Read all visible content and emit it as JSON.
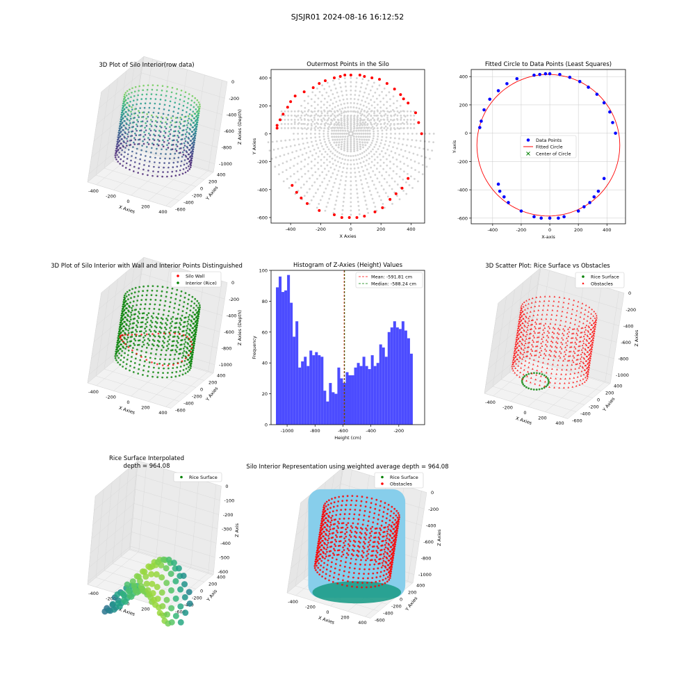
{
  "suptitle": "SJSJR01 2024-08-16 16:12:52",
  "colors": {
    "red": "#ff0000",
    "green": "#008000",
    "blue": "#0000ff",
    "hist_blue": "#4c4cff",
    "light_gray": "#d3d3d3",
    "sky_blue": "#87ceeb",
    "grid": "#c8c8c8"
  },
  "chart_data": [
    {
      "id": "p1",
      "type": "scatter3d",
      "title": "3D Plot of Silo Interior(row data)",
      "xlabel": "X Axies",
      "ylabel": "Y Axies",
      "zlabel": "Z Axies (Depth)",
      "xticks": [
        -400,
        -200,
        0,
        200,
        400
      ],
      "yticks": [
        -600,
        -400,
        -200,
        0,
        200,
        400
      ],
      "zticks": [
        0,
        -200,
        -400,
        -600,
        -800,
        -1000
      ],
      "xlim": [
        -500,
        460
      ],
      "ylim": [
        -600,
        420
      ],
      "zlim": [
        -1100,
        0
      ],
      "colormap": "viridis"
    },
    {
      "id": "p2",
      "type": "scatter",
      "title": "Outermost Points in the Silo",
      "xlabel": "X Axies",
      "ylabel": "Y Axies",
      "xticks": [
        -400,
        -200,
        0,
        200,
        400
      ],
      "yticks": [
        -600,
        -400,
        -200,
        0,
        200,
        400
      ],
      "xlim": [
        -530,
        490
      ],
      "ylim": [
        -640,
        460
      ],
      "outer_points": [
        [
          -490,
          60
        ],
        [
          -490,
          40
        ],
        [
          -470,
          100
        ],
        [
          -450,
          140
        ],
        [
          -420,
          190
        ],
        [
          -400,
          230
        ],
        [
          -370,
          270
        ],
        [
          -310,
          300
        ],
        [
          -250,
          330
        ],
        [
          -210,
          360
        ],
        [
          -170,
          380
        ],
        [
          -110,
          400
        ],
        [
          -70,
          410
        ],
        [
          -40,
          420
        ],
        [
          0,
          420
        ],
        [
          60,
          420
        ],
        [
          90,
          410
        ],
        [
          140,
          400
        ],
        [
          190,
          390
        ],
        [
          240,
          360
        ],
        [
          290,
          320
        ],
        [
          330,
          280
        ],
        [
          350,
          250
        ],
        [
          380,
          220
        ],
        [
          430,
          150
        ],
        [
          450,
          80
        ],
        [
          470,
          0
        ],
        [
          380,
          -320
        ],
        [
          340,
          -390
        ],
        [
          300,
          -430
        ],
        [
          260,
          -470
        ],
        [
          210,
          -530
        ],
        [
          160,
          -560
        ],
        [
          90,
          -590
        ],
        [
          40,
          -600
        ],
        [
          -10,
          -600
        ],
        [
          -60,
          -600
        ],
        [
          -110,
          -580
        ],
        [
          -210,
          -550
        ],
        [
          -290,
          -500
        ],
        [
          -330,
          -460
        ],
        [
          -360,
          -420
        ],
        [
          -390,
          -370
        ]
      ]
    },
    {
      "id": "p3",
      "type": "scatter",
      "title": "Fitted Circle to Data Points (Least Squares)",
      "xlabel": "X-axis",
      "ylabel": "Y-axis",
      "xticks": [
        -400,
        -200,
        0,
        200,
        400
      ],
      "yticks": [
        -600,
        -400,
        -200,
        0,
        200,
        400
      ],
      "xlim": [
        -550,
        530
      ],
      "ylim": [
        -640,
        450
      ],
      "legend": [
        "Data Points",
        "Fitted Circle",
        "Center of Circle"
      ],
      "circle": {
        "cx": -10,
        "cy": -85,
        "r": 500
      },
      "center": [
        -10,
        -85
      ],
      "data_points": [
        [
          -490,
          40
        ],
        [
          -480,
          85
        ],
        [
          -460,
          165
        ],
        [
          -420,
          240
        ],
        [
          -360,
          300
        ],
        [
          -300,
          350
        ],
        [
          -230,
          385
        ],
        [
          -110,
          410
        ],
        [
          -70,
          415
        ],
        [
          -30,
          420
        ],
        [
          0,
          420
        ],
        [
          70,
          415
        ],
        [
          140,
          395
        ],
        [
          210,
          365
        ],
        [
          270,
          325
        ],
        [
          330,
          275
        ],
        [
          380,
          215
        ],
        [
          420,
          150
        ],
        [
          440,
          75
        ],
        [
          460,
          0
        ],
        [
          380,
          -320
        ],
        [
          340,
          -410
        ],
        [
          310,
          -450
        ],
        [
          280,
          -490
        ],
        [
          240,
          -520
        ],
        [
          200,
          -550
        ],
        [
          100,
          -590
        ],
        [
          60,
          -600
        ],
        [
          0,
          -600
        ],
        [
          -60,
          -600
        ],
        [
          -110,
          -590
        ],
        [
          -200,
          -550
        ],
        [
          -290,
          -490
        ],
        [
          -320,
          -450
        ],
        [
          -350,
          -410
        ],
        [
          -360,
          -360
        ]
      ]
    },
    {
      "id": "p4",
      "type": "scatter3d",
      "title": "3D Plot of Silo Interior with Wall and Interior Points Distinguished",
      "xlabel": "X Axies",
      "ylabel": "Y Axies",
      "zlabel": "Z Axies (Depth)",
      "xticks": [
        -400,
        -200,
        0,
        200,
        400
      ],
      "yticks": [
        -600,
        -400,
        -200,
        0,
        200,
        400
      ],
      "zticks": [
        0,
        -200,
        -400,
        -600,
        -800,
        -1000
      ],
      "xlim": [
        -500,
        460
      ],
      "ylim": [
        -600,
        420
      ],
      "zlim": [
        -1100,
        0
      ],
      "legend": [
        "Silo Wall",
        "Interior (Rice)"
      ]
    },
    {
      "id": "p5",
      "type": "bar",
      "title": "Histogram of Z-Axies (Height) Values",
      "xlabel": "Height (cm)",
      "ylabel": "Frequency",
      "xticks": [
        -1000,
        -800,
        -600,
        -400,
        -200
      ],
      "yticks": [
        0,
        20,
        40,
        60,
        80,
        100
      ],
      "xlim": [
        -1115,
        -15
      ],
      "ylim": [
        0,
        100
      ],
      "bin_start": -1080,
      "bin_width": 20,
      "values": [
        89,
        96,
        86,
        87,
        97,
        79,
        57,
        67,
        37,
        41,
        44,
        38,
        48,
        45,
        47,
        45,
        44,
        22,
        15,
        27,
        21,
        20,
        37,
        30,
        27,
        34,
        32,
        32,
        37,
        40,
        38,
        44,
        38,
        36,
        45,
        38,
        40,
        52,
        50,
        44,
        60,
        63,
        67,
        63,
        62,
        67,
        61,
        56,
        46
      ],
      "mean": -591.81,
      "median": -588.24,
      "legend": [
        "Mean: -591.81 cm",
        "Median: -588.24 cm"
      ]
    },
    {
      "id": "p6",
      "type": "scatter3d",
      "title": "3D Scatter Plot: Rice Surface vs Obstacles",
      "xlabel": "X Axies",
      "ylabel": "Y Axies",
      "zlabel": "Z Axies",
      "xticks": [
        -400,
        -200,
        0,
        200,
        400
      ],
      "yticks": [
        -600,
        -400,
        -200,
        0,
        200,
        400
      ],
      "zticks": [
        0,
        -200,
        -400,
        -600,
        -800,
        -1000
      ],
      "xlim": [
        -500,
        460
      ],
      "ylim": [
        -600,
        420
      ],
      "zlim": [
        -1100,
        0
      ],
      "legend": [
        "Rice Surface",
        "Obstacles"
      ]
    },
    {
      "id": "p7",
      "type": "surface3d",
      "title": "Rice Surface Interpolated",
      "subtitle": "depth = 964.08",
      "xlabel": "X Axies",
      "ylabel": "Y Axis",
      "zlabel": "Z Axis",
      "xticks": [
        -400,
        -200,
        0,
        200,
        400
      ],
      "yticks": [
        -600,
        -400,
        -200,
        0,
        200,
        400
      ],
      "zticks": [
        0,
        -100,
        -200,
        -300,
        -400,
        -500,
        -600
      ],
      "xlim": [
        -500,
        460
      ],
      "ylim": [
        -600,
        420
      ],
      "zlim": [
        -620,
        0
      ],
      "legend": [
        "Rice Surface"
      ]
    },
    {
      "id": "p8",
      "type": "scatter3d",
      "title": "Silo Interior Representation using weighted average depth = 964.08",
      "xlabel": "X Axies",
      "ylabel": "Y Axies",
      "zlabel": "Z Axies",
      "xticks": [
        -400,
        -200,
        0,
        200,
        400
      ],
      "yticks": [
        -600,
        -400,
        -200,
        0,
        200,
        400
      ],
      "zticks": [
        0,
        -200,
        -400,
        -600,
        -800,
        -1000
      ],
      "xlim": [
        -500,
        460
      ],
      "ylim": [
        -600,
        420
      ],
      "zlim": [
        -1100,
        0
      ],
      "legend": [
        "Rice Surface",
        "Obstacles"
      ]
    }
  ]
}
